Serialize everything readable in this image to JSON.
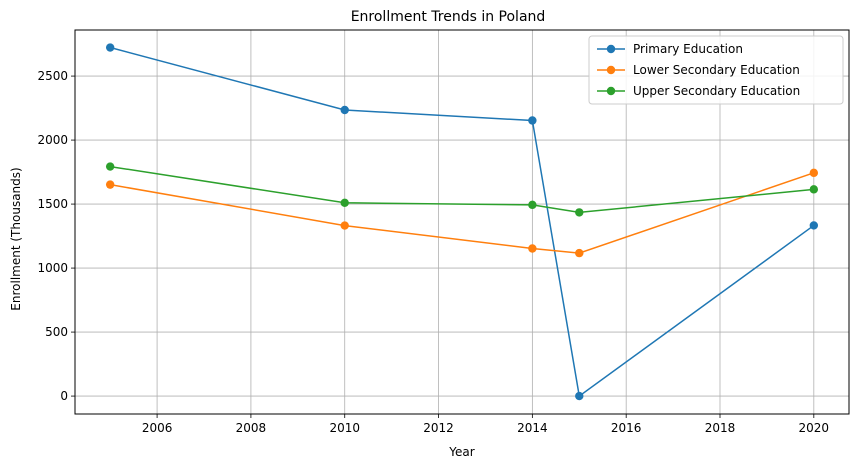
{
  "chart_data": {
    "type": "line",
    "title": "Enrollment Trends in Poland",
    "xlabel": "Year",
    "ylabel": "Enrollment (Thousands)",
    "xlim": [
      2004.25,
      2020.75
    ],
    "ylim": [
      -140,
      2860
    ],
    "xticks": [
      2006,
      2008,
      2010,
      2012,
      2014,
      2016,
      2018,
      2020
    ],
    "yticks": [
      0,
      500,
      1000,
      1500,
      2000,
      2500
    ],
    "grid": true,
    "legend_position": "top-right",
    "x": [
      2005,
      2010,
      2014,
      2015,
      2020
    ],
    "series": [
      {
        "name": "Primary Education",
        "color": "#1f77b4",
        "values": [
          2723,
          2235,
          2153,
          0,
          1333
        ]
      },
      {
        "name": "Lower Secondary Education",
        "color": "#ff7f0e",
        "values": [
          1652,
          1332,
          1153,
          1117,
          1744
        ]
      },
      {
        "name": "Upper Secondary Education",
        "color": "#2ca02c",
        "values": [
          1793,
          1510,
          1494,
          1435,
          1615
        ]
      }
    ]
  }
}
